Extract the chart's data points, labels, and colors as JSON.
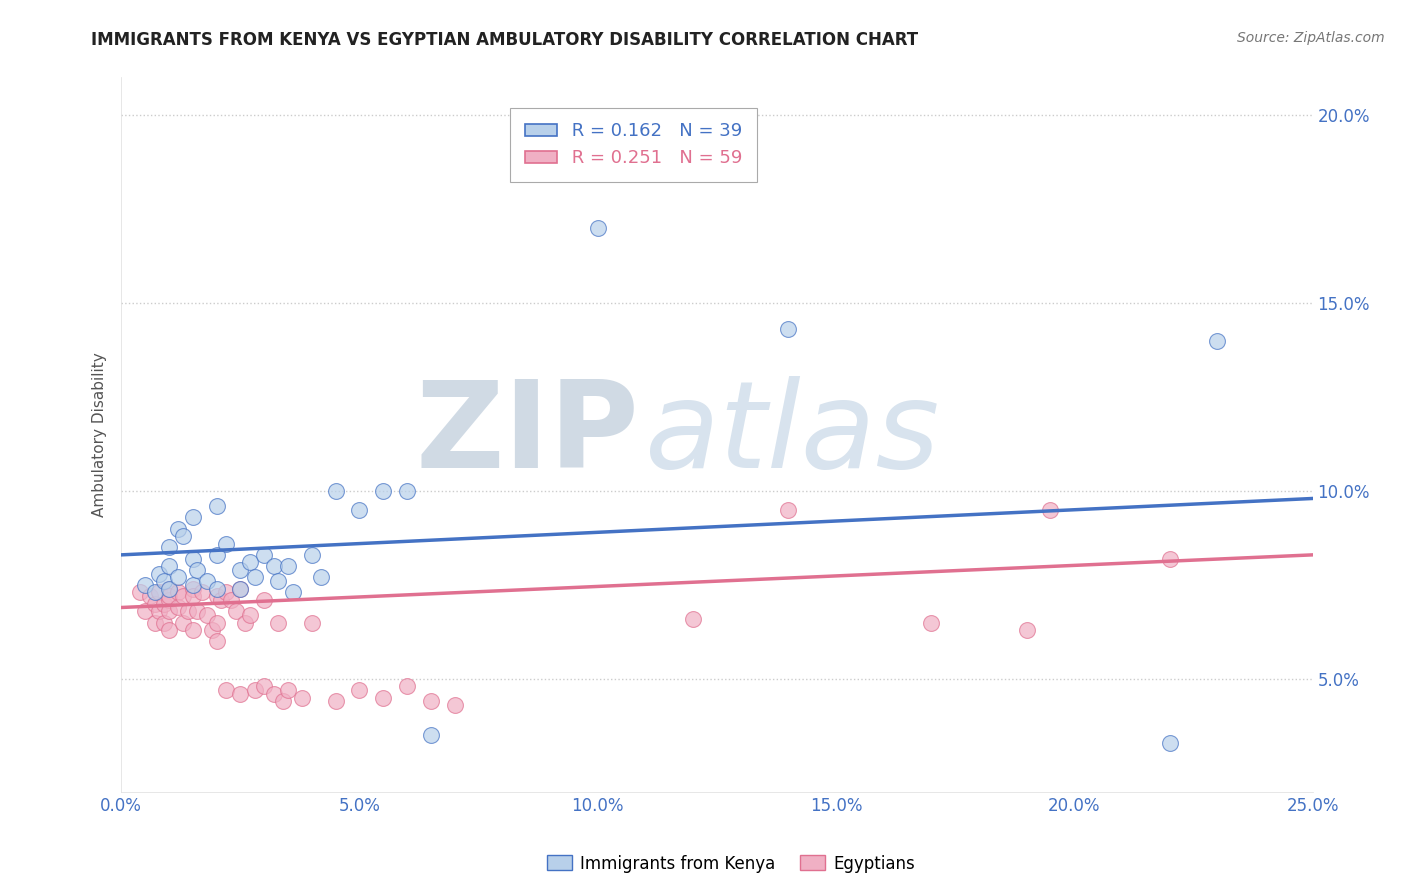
{
  "title": "IMMIGRANTS FROM KENYA VS EGYPTIAN AMBULATORY DISABILITY CORRELATION CHART",
  "source": "Source: ZipAtlas.com",
  "ylabel": "Ambulatory Disability",
  "legend_entries": [
    {
      "label": "Immigrants from Kenya",
      "R": "0.162",
      "N": "39"
    },
    {
      "label": "Egyptians",
      "R": "0.251",
      "N": "59"
    }
  ],
  "xlim": [
    0.0,
    0.25
  ],
  "ylim": [
    0.02,
    0.21
  ],
  "xtick_labels": [
    "0.0%",
    "5.0%",
    "10.0%",
    "15.0%",
    "20.0%",
    "25.0%"
  ],
  "xtick_vals": [
    0.0,
    0.05,
    0.1,
    0.15,
    0.2,
    0.25
  ],
  "ytick_labels": [
    "5.0%",
    "10.0%",
    "15.0%",
    "20.0%"
  ],
  "ytick_vals": [
    0.05,
    0.1,
    0.15,
    0.2
  ],
  "blue_scatter_x": [
    0.005,
    0.007,
    0.008,
    0.009,
    0.01,
    0.01,
    0.01,
    0.012,
    0.012,
    0.013,
    0.015,
    0.015,
    0.015,
    0.016,
    0.018,
    0.02,
    0.02,
    0.02,
    0.022,
    0.025,
    0.025,
    0.027,
    0.028,
    0.03,
    0.032,
    0.033,
    0.035,
    0.036,
    0.04,
    0.042,
    0.045,
    0.05,
    0.055,
    0.06,
    0.065,
    0.1,
    0.14,
    0.22,
    0.23
  ],
  "blue_scatter_y": [
    0.075,
    0.073,
    0.078,
    0.076,
    0.074,
    0.08,
    0.085,
    0.077,
    0.09,
    0.088,
    0.075,
    0.082,
    0.093,
    0.079,
    0.076,
    0.083,
    0.074,
    0.096,
    0.086,
    0.079,
    0.074,
    0.081,
    0.077,
    0.083,
    0.08,
    0.076,
    0.08,
    0.073,
    0.083,
    0.077,
    0.1,
    0.095,
    0.1,
    0.1,
    0.035,
    0.17,
    0.143,
    0.033,
    0.14
  ],
  "pink_scatter_x": [
    0.004,
    0.005,
    0.006,
    0.007,
    0.007,
    0.008,
    0.008,
    0.009,
    0.009,
    0.01,
    0.01,
    0.01,
    0.01,
    0.01,
    0.012,
    0.012,
    0.013,
    0.013,
    0.014,
    0.015,
    0.015,
    0.015,
    0.016,
    0.017,
    0.018,
    0.019,
    0.02,
    0.02,
    0.02,
    0.021,
    0.022,
    0.022,
    0.023,
    0.024,
    0.025,
    0.025,
    0.026,
    0.027,
    0.028,
    0.03,
    0.03,
    0.032,
    0.033,
    0.034,
    0.035,
    0.038,
    0.04,
    0.045,
    0.05,
    0.055,
    0.06,
    0.065,
    0.07,
    0.12,
    0.14,
    0.17,
    0.19,
    0.195,
    0.22
  ],
  "pink_scatter_y": [
    0.073,
    0.068,
    0.072,
    0.065,
    0.07,
    0.068,
    0.073,
    0.065,
    0.07,
    0.074,
    0.071,
    0.068,
    0.072,
    0.063,
    0.073,
    0.069,
    0.065,
    0.072,
    0.068,
    0.074,
    0.072,
    0.063,
    0.068,
    0.073,
    0.067,
    0.063,
    0.072,
    0.065,
    0.06,
    0.071,
    0.073,
    0.047,
    0.071,
    0.068,
    0.074,
    0.046,
    0.065,
    0.067,
    0.047,
    0.071,
    0.048,
    0.046,
    0.065,
    0.044,
    0.047,
    0.045,
    0.065,
    0.044,
    0.047,
    0.045,
    0.048,
    0.044,
    0.043,
    0.066,
    0.095,
    0.065,
    0.063,
    0.095,
    0.082
  ],
  "blue_line_x": [
    0.0,
    0.25
  ],
  "blue_line_y": [
    0.083,
    0.098
  ],
  "pink_line_x": [
    0.0,
    0.25
  ],
  "pink_line_y": [
    0.069,
    0.083
  ],
  "blue_color": "#4472c4",
  "pink_color": "#e07090",
  "blue_scatter_color": "#b8d0ea",
  "pink_scatter_color": "#f0b0c4",
  "watermark_zip": "ZIP",
  "watermark_atlas": "atlas",
  "background_color": "#ffffff",
  "grid_color": "#cccccc",
  "title_color": "#222222",
  "source_color": "#777777",
  "tick_color": "#4472c4"
}
